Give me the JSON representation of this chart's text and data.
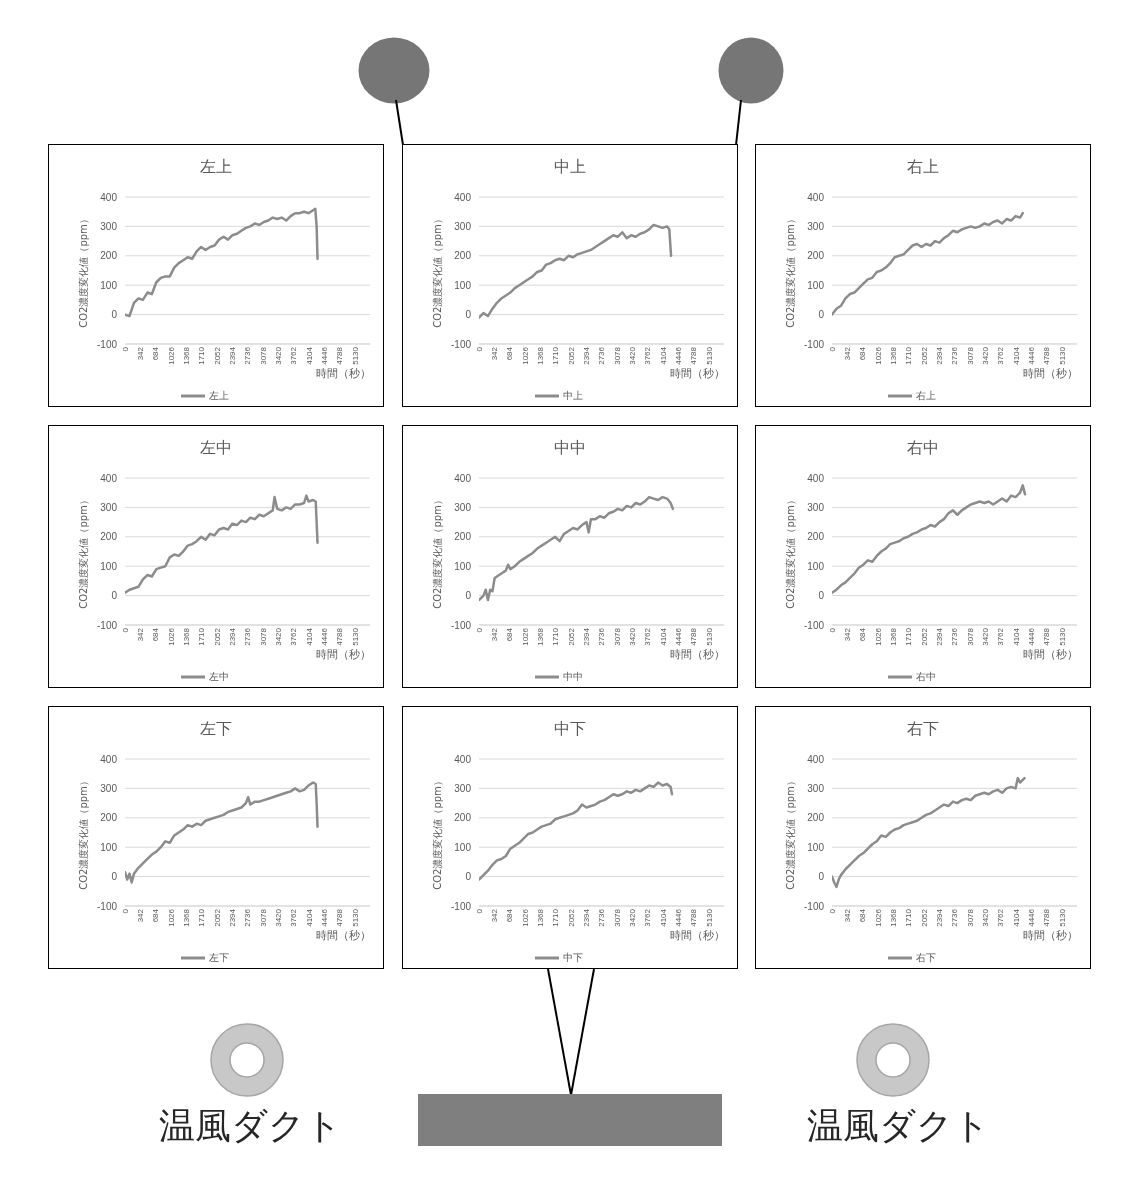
{
  "chart_data": [
    {
      "type": "line",
      "title": "左上",
      "xlabel": "時間（秒）",
      "ylabel": "CO2濃度変化値（ppm）",
      "xlim": [
        0,
        5472
      ],
      "xticks": [
        0,
        342,
        684,
        1026,
        1368,
        1710,
        2052,
        2394,
        2736,
        3078,
        3420,
        3762,
        4104,
        4446,
        4788,
        5130
      ],
      "ylim": [
        -100,
        400
      ],
      "yticks": [
        -100,
        0,
        100,
        200,
        300,
        400
      ],
      "grid": "y",
      "legend": "bottom",
      "marker": "none",
      "series": [
        {
          "name": "左上",
          "color": "#8c8c8c",
          "x": [
            0,
            100,
            200,
            300,
            400,
            500,
            600,
            700,
            800,
            900,
            1000,
            1100,
            1200,
            1300,
            1400,
            1500,
            1600,
            1700,
            1800,
            1900,
            2000,
            2100,
            2200,
            2300,
            2400,
            2500,
            2600,
            2700,
            2800,
            2900,
            3000,
            3100,
            3200,
            3300,
            3400,
            3500,
            3600,
            3700,
            3800,
            3900,
            4000,
            4100,
            4200,
            4250,
            4280,
            4300
          ],
          "values": [
            0,
            -5,
            40,
            55,
            50,
            75,
            70,
            110,
            125,
            130,
            130,
            160,
            175,
            185,
            195,
            190,
            215,
            230,
            220,
            230,
            235,
            255,
            265,
            255,
            270,
            275,
            285,
            295,
            300,
            310,
            305,
            315,
            320,
            330,
            325,
            330,
            320,
            335,
            345,
            345,
            350,
            345,
            355,
            360,
            300,
            190
          ]
        }
      ]
    },
    {
      "type": "line",
      "title": "中上",
      "xlabel": "時間（秒）",
      "ylabel": "CO2濃度変化値（ppm）",
      "xlim": [
        0,
        5472
      ],
      "xticks": [
        0,
        342,
        684,
        1026,
        1368,
        1710,
        2052,
        2394,
        2736,
        3078,
        3420,
        3762,
        4104,
        4446,
        4788,
        5130
      ],
      "ylim": [
        -100,
        400
      ],
      "yticks": [
        -100,
        0,
        100,
        200,
        300,
        400
      ],
      "grid": "y",
      "legend": "bottom",
      "marker": "none",
      "series": [
        {
          "name": "中上",
          "color": "#8c8c8c",
          "x": [
            0,
            100,
            200,
            300,
            400,
            500,
            600,
            700,
            800,
            900,
            1000,
            1100,
            1200,
            1300,
            1400,
            1500,
            1600,
            1700,
            1800,
            1900,
            2000,
            2100,
            2200,
            2300,
            2400,
            2500,
            2600,
            2700,
            2800,
            2900,
            3000,
            3100,
            3200,
            3300,
            3400,
            3500,
            3600,
            3700,
            3800,
            3900,
            4000,
            4100,
            4200,
            4250,
            4290
          ],
          "values": [
            -10,
            5,
            -5,
            20,
            40,
            55,
            65,
            75,
            90,
            100,
            110,
            120,
            130,
            145,
            150,
            170,
            175,
            185,
            190,
            185,
            200,
            195,
            205,
            210,
            215,
            220,
            230,
            240,
            250,
            260,
            270,
            265,
            280,
            260,
            270,
            265,
            275,
            280,
            290,
            305,
            300,
            295,
            300,
            290,
            200
          ]
        }
      ]
    },
    {
      "type": "line",
      "title": "右上",
      "xlabel": "時間（秒）",
      "ylabel": "CO2濃度変化値（ppm）",
      "xlim": [
        0,
        5472
      ],
      "xticks": [
        0,
        342,
        684,
        1026,
        1368,
        1710,
        2052,
        2394,
        2736,
        3078,
        3420,
        3762,
        4104,
        4446,
        4788,
        5130
      ],
      "ylim": [
        -100,
        400
      ],
      "yticks": [
        -100,
        0,
        100,
        200,
        300,
        400
      ],
      "grid": "y",
      "legend": "bottom",
      "marker": "none",
      "series": [
        {
          "name": "右上",
          "color": "#8c8c8c",
          "x": [
            0,
            100,
            200,
            300,
            400,
            500,
            600,
            700,
            800,
            900,
            1000,
            1100,
            1200,
            1300,
            1400,
            1500,
            1600,
            1700,
            1800,
            1900,
            2000,
            2100,
            2200,
            2300,
            2400,
            2500,
            2600,
            2700,
            2800,
            2900,
            3000,
            3100,
            3200,
            3300,
            3400,
            3500,
            3600,
            3700,
            3800,
            3900,
            4000,
            4100,
            4200,
            4260
          ],
          "values": [
            0,
            20,
            30,
            55,
            70,
            75,
            90,
            105,
            120,
            125,
            145,
            150,
            160,
            175,
            195,
            200,
            205,
            220,
            235,
            240,
            230,
            240,
            235,
            250,
            245,
            260,
            270,
            285,
            280,
            290,
            295,
            300,
            295,
            300,
            310,
            305,
            315,
            320,
            310,
            325,
            320,
            335,
            330,
            345
          ]
        }
      ]
    },
    {
      "type": "line",
      "title": "左中",
      "xlabel": "時間（秒）",
      "ylabel": "CO2濃度変化値（ppm）",
      "xlim": [
        0,
        5472
      ],
      "xticks": [
        0,
        342,
        684,
        1026,
        1368,
        1710,
        2052,
        2394,
        2736,
        3078,
        3420,
        3762,
        4104,
        4446,
        4788,
        5130
      ],
      "ylim": [
        -100,
        400
      ],
      "yticks": [
        -100,
        0,
        100,
        200,
        300,
        400
      ],
      "grid": "y",
      "legend": "bottom",
      "marker": "none",
      "series": [
        {
          "name": "左中",
          "color": "#8c8c8c",
          "x": [
            0,
            100,
            200,
            300,
            400,
            500,
            600,
            700,
            800,
            900,
            1000,
            1100,
            1200,
            1300,
            1400,
            1500,
            1600,
            1700,
            1800,
            1900,
            2000,
            2100,
            2200,
            2300,
            2400,
            2500,
            2600,
            2700,
            2800,
            2900,
            3000,
            3100,
            3200,
            3300,
            3340,
            3400,
            3500,
            3600,
            3700,
            3800,
            3900,
            4000,
            4050,
            4100,
            4200,
            4260,
            4300
          ],
          "values": [
            10,
            20,
            25,
            30,
            55,
            70,
            65,
            90,
            95,
            100,
            130,
            140,
            135,
            150,
            170,
            175,
            185,
            200,
            190,
            210,
            205,
            225,
            230,
            225,
            245,
            240,
            255,
            250,
            265,
            260,
            275,
            270,
            280,
            290,
            335,
            295,
            290,
            300,
            295,
            310,
            310,
            315,
            340,
            320,
            325,
            320,
            180
          ]
        }
      ]
    },
    {
      "type": "line",
      "title": "中中",
      "xlabel": "時間（秒）",
      "ylabel": "CO2濃度変化値（ppm）",
      "xlim": [
        0,
        5472
      ],
      "xticks": [
        0,
        342,
        684,
        1026,
        1368,
        1710,
        2052,
        2394,
        2736,
        3078,
        3420,
        3762,
        4104,
        4446,
        4788,
        5130
      ],
      "ylim": [
        -100,
        400
      ],
      "yticks": [
        -100,
        0,
        100,
        200,
        300,
        400
      ],
      "grid": "y",
      "legend": "bottom",
      "marker": "none",
      "series": [
        {
          "name": "中中",
          "color": "#8c8c8c",
          "x": [
            0,
            100,
            150,
            200,
            250,
            300,
            350,
            400,
            500,
            600,
            650,
            700,
            800,
            900,
            1000,
            1100,
            1200,
            1300,
            1400,
            1500,
            1600,
            1700,
            1800,
            1900,
            2000,
            2100,
            2200,
            2300,
            2400,
            2450,
            2500,
            2600,
            2700,
            2800,
            2900,
            3000,
            3100,
            3200,
            3300,
            3400,
            3500,
            3600,
            3700,
            3800,
            3900,
            4000,
            4100,
            4200,
            4280,
            4330
          ],
          "values": [
            -15,
            0,
            20,
            -15,
            20,
            15,
            60,
            65,
            75,
            85,
            105,
            90,
            100,
            115,
            125,
            135,
            145,
            160,
            170,
            180,
            190,
            200,
            185,
            210,
            220,
            230,
            225,
            240,
            250,
            215,
            260,
            260,
            270,
            265,
            280,
            285,
            295,
            290,
            305,
            300,
            315,
            310,
            320,
            335,
            330,
            325,
            335,
            330,
            315,
            295
          ]
        }
      ]
    },
    {
      "type": "line",
      "title": "右中",
      "xlabel": "時間（秒）",
      "ylabel": "CO2濃度変化値（ppm）",
      "xlim": [
        0,
        5472
      ],
      "xticks": [
        0,
        342,
        684,
        1026,
        1368,
        1710,
        2052,
        2394,
        2736,
        3078,
        3420,
        3762,
        4104,
        4446,
        4788,
        5130
      ],
      "ylim": [
        -100,
        400
      ],
      "yticks": [
        -100,
        0,
        100,
        200,
        300,
        400
      ],
      "grid": "y",
      "legend": "bottom",
      "marker": "none",
      "series": [
        {
          "name": "右中",
          "color": "#8c8c8c",
          "x": [
            0,
            100,
            200,
            300,
            400,
            500,
            600,
            700,
            800,
            900,
            1000,
            1100,
            1200,
            1300,
            1400,
            1500,
            1600,
            1700,
            1800,
            1900,
            2000,
            2100,
            2200,
            2300,
            2400,
            2500,
            2600,
            2700,
            2800,
            2900,
            3000,
            3100,
            3200,
            3300,
            3400,
            3500,
            3600,
            3700,
            3800,
            3900,
            4000,
            4100,
            4200,
            4260,
            4310
          ],
          "values": [
            10,
            20,
            35,
            45,
            60,
            75,
            95,
            105,
            120,
            115,
            135,
            150,
            160,
            175,
            180,
            185,
            195,
            200,
            210,
            215,
            225,
            230,
            240,
            235,
            250,
            260,
            280,
            290,
            275,
            290,
            300,
            310,
            315,
            320,
            315,
            320,
            310,
            320,
            330,
            320,
            340,
            335,
            350,
            375,
            345
          ]
        }
      ]
    },
    {
      "type": "line",
      "title": "左下",
      "xlabel": "時間（秒）",
      "ylabel": "CO2濃度変化値（ppm）",
      "xlim": [
        0,
        5472
      ],
      "xticks": [
        0,
        342,
        684,
        1026,
        1368,
        1710,
        2052,
        2394,
        2736,
        3078,
        3420,
        3762,
        4104,
        4446,
        4788,
        5130
      ],
      "ylim": [
        -100,
        400
      ],
      "yticks": [
        -100,
        0,
        100,
        200,
        300,
        400
      ],
      "grid": "y",
      "legend": "bottom",
      "marker": "none",
      "series": [
        {
          "name": "左下",
          "color": "#8c8c8c",
          "x": [
            0,
            50,
            100,
            150,
            200,
            300,
            400,
            500,
            600,
            700,
            800,
            900,
            1000,
            1100,
            1200,
            1300,
            1400,
            1500,
            1600,
            1700,
            1800,
            1900,
            2000,
            2100,
            2200,
            2300,
            2400,
            2500,
            2600,
            2700,
            2750,
            2800,
            2900,
            3000,
            3100,
            3200,
            3300,
            3400,
            3500,
            3600,
            3700,
            3800,
            3900,
            4000,
            4100,
            4200,
            4260,
            4280,
            4300
          ],
          "values": [
            15,
            -10,
            10,
            -20,
            10,
            30,
            45,
            60,
            75,
            85,
            100,
            120,
            115,
            140,
            150,
            160,
            175,
            170,
            180,
            175,
            190,
            195,
            200,
            205,
            210,
            220,
            225,
            230,
            235,
            250,
            270,
            245,
            255,
            255,
            260,
            265,
            270,
            275,
            280,
            285,
            290,
            300,
            290,
            295,
            310,
            320,
            315,
            250,
            170
          ]
        }
      ]
    },
    {
      "type": "line",
      "title": "中下",
      "xlabel": "時間（秒）",
      "ylabel": "CO2濃度変化値（ppm）",
      "xlim": [
        0,
        5472
      ],
      "xticks": [
        0,
        342,
        684,
        1026,
        1368,
        1710,
        2052,
        2394,
        2736,
        3078,
        3420,
        3762,
        4104,
        4446,
        4788,
        5130
      ],
      "ylim": [
        -100,
        400
      ],
      "yticks": [
        -100,
        0,
        100,
        200,
        300,
        400
      ],
      "grid": "y",
      "legend": "bottom",
      "marker": "none",
      "series": [
        {
          "name": "中下",
          "color": "#8c8c8c",
          "x": [
            0,
            100,
            200,
            300,
            400,
            500,
            600,
            700,
            800,
            900,
            1000,
            1100,
            1200,
            1300,
            1400,
            1500,
            1600,
            1700,
            1800,
            1900,
            2000,
            2100,
            2200,
            2300,
            2400,
            2500,
            2600,
            2700,
            2800,
            2900,
            3000,
            3100,
            3200,
            3300,
            3400,
            3500,
            3600,
            3700,
            3800,
            3900,
            4000,
            4100,
            4200,
            4280,
            4310
          ],
          "values": [
            -10,
            5,
            20,
            40,
            55,
            60,
            70,
            95,
            105,
            115,
            130,
            145,
            150,
            160,
            170,
            175,
            180,
            195,
            200,
            205,
            210,
            215,
            225,
            245,
            235,
            240,
            245,
            255,
            260,
            270,
            280,
            275,
            280,
            290,
            285,
            295,
            290,
            300,
            310,
            305,
            320,
            310,
            315,
            305,
            280
          ]
        }
      ]
    },
    {
      "type": "line",
      "title": "右下",
      "xlabel": "時間（秒）",
      "ylabel": "CO2濃度変化値（ppm）",
      "xlim": [
        0,
        5472
      ],
      "xticks": [
        0,
        342,
        684,
        1026,
        1368,
        1710,
        2052,
        2394,
        2736,
        3078,
        3420,
        3762,
        4104,
        4446,
        4788,
        5130
      ],
      "ylim": [
        -100,
        400
      ],
      "yticks": [
        -100,
        0,
        100,
        200,
        300,
        400
      ],
      "grid": "y",
      "legend": "bottom",
      "marker": "none",
      "series": [
        {
          "name": "右下",
          "color": "#8c8c8c",
          "x": [
            0,
            50,
            100,
            150,
            200,
            300,
            400,
            500,
            600,
            700,
            800,
            900,
            1000,
            1100,
            1200,
            1300,
            1400,
            1500,
            1600,
            1700,
            1800,
            1900,
            2000,
            2100,
            2200,
            2300,
            2400,
            2500,
            2600,
            2700,
            2800,
            2900,
            3000,
            3100,
            3200,
            3300,
            3400,
            3500,
            3600,
            3700,
            3800,
            3900,
            4000,
            4100,
            4150,
            4200,
            4300
          ],
          "values": [
            0,
            -20,
            -35,
            -10,
            5,
            25,
            40,
            55,
            70,
            80,
            95,
            110,
            120,
            140,
            135,
            150,
            160,
            165,
            175,
            180,
            185,
            190,
            200,
            210,
            215,
            225,
            235,
            245,
            240,
            255,
            250,
            260,
            265,
            260,
            275,
            280,
            285,
            280,
            290,
            295,
            285,
            300,
            305,
            300,
            335,
            320,
            335
          ]
        }
      ]
    },
    {
      "type": "other",
      "annotations": [
        "温風ダクト",
        "温風ダクト"
      ]
    }
  ]
}
